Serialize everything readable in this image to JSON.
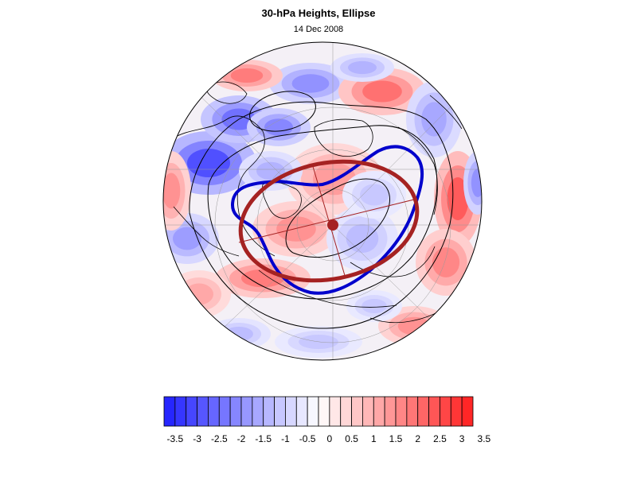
{
  "title": "30-hPa Heights, Ellipse",
  "subtitle": "14 Dec 2008",
  "map": {
    "projection": "polar-stereographic-north",
    "anomaly_colors": {
      "negative": "#1e1eff",
      "positive": "#ff1e1e",
      "neutral": "#ffffff"
    },
    "vortex_contour_color": "#0000cc",
    "ellipse_color": "#a52222",
    "height_contour_color": "#000000"
  },
  "colorbar": {
    "levels": [
      -3.5,
      -3.25,
      -3,
      -2.75,
      -2.5,
      -2.25,
      -2,
      -1.75,
      -1.5,
      -1.25,
      -1,
      -0.75,
      -0.5,
      -0.25,
      0,
      0.25,
      0.5,
      0.75,
      1,
      1.25,
      1.5,
      1.75,
      2,
      2.25,
      2.5,
      2.75,
      3,
      3.25,
      3.5
    ],
    "tick_labels": [
      "-3.5",
      "-3",
      "-2.5",
      "-2",
      "-1.5",
      "-1",
      "-0.5",
      "0",
      "0.5",
      "1",
      "1.5",
      "2",
      "2.5",
      "3",
      "3.5"
    ]
  }
}
